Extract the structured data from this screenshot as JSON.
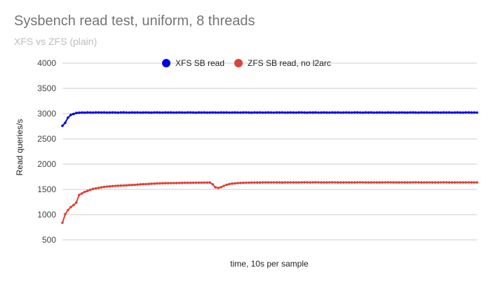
{
  "title": "Sysbench read test, uniform, 8 threads",
  "subtitle": "XFS vs ZFS (plain)",
  "chart_data": {
    "type": "line",
    "title": "Sysbench read test, uniform, 8 threads",
    "subtitle": "XFS vs ZFS (plain)",
    "xlabel": "time, 10s per sample",
    "ylabel": "Read queries/s",
    "ylim": [
      500,
      4000
    ],
    "yticks": [
      "4000",
      "3500",
      "3000",
      "2500",
      "2000",
      "1500",
      "1000",
      "500"
    ],
    "grid": true,
    "legend_position": "top",
    "x": [
      1,
      2,
      3,
      4,
      5,
      6,
      7,
      8,
      9,
      10,
      11,
      12,
      13,
      14,
      15,
      16,
      17,
      18,
      19,
      20,
      21,
      22,
      23,
      24,
      25,
      26,
      27,
      28,
      29,
      30,
      31,
      32,
      33,
      34,
      35,
      36,
      37,
      38,
      39,
      40,
      41,
      42,
      43,
      44,
      45,
      46,
      47,
      48,
      49,
      50,
      51,
      52,
      53,
      54,
      55,
      56,
      57,
      58,
      59,
      60,
      61,
      62,
      63,
      64,
      65,
      66,
      67,
      68,
      69,
      70,
      71,
      72,
      73,
      74,
      75,
      76,
      77,
      78,
      79,
      80,
      81,
      82,
      83,
      84,
      85,
      86,
      87,
      88,
      89,
      90,
      91,
      92,
      93,
      94,
      95,
      96,
      97,
      98,
      99,
      100,
      101,
      102,
      103,
      104,
      105,
      106,
      107,
      108,
      109,
      110,
      111,
      112,
      113,
      114,
      115,
      116,
      117,
      118,
      119,
      120,
      121,
      122,
      123,
      124,
      125,
      126,
      127,
      128,
      129,
      130,
      131,
      132,
      133,
      134,
      135,
      136,
      137,
      138,
      139,
      140,
      141,
      142,
      143,
      144,
      145,
      146,
      147,
      148,
      149,
      150
    ],
    "series": [
      {
        "name": "XFS SB read",
        "color": "#0000e6",
        "values": [
          2760,
          2820,
          2920,
          2975,
          2995,
          3012,
          3018,
          3022,
          3020,
          3024,
          3022,
          3021,
          3023,
          3024,
          3022,
          3023,
          3021,
          3022,
          3024,
          3022,
          3020,
          3023,
          3025,
          3022,
          3021,
          3023,
          3022,
          3024,
          3021,
          3022,
          3023,
          3022,
          3020,
          3023,
          3024,
          3022,
          3021,
          3023,
          3022,
          3024,
          3021,
          3022,
          3023,
          3022,
          3021,
          3023,
          3024,
          3022,
          3020,
          3023,
          3022,
          3024,
          3021,
          3022,
          3023,
          3022,
          3021,
          3023,
          3022,
          3024,
          3021,
          3022,
          3023,
          3022,
          3021,
          3023,
          3024,
          3022,
          3020,
          3023,
          3022,
          3024,
          3021,
          3022,
          3023,
          3022,
          3021,
          3023,
          3022,
          3024,
          3021,
          3022,
          3023,
          3022,
          3021,
          3023,
          3024,
          3022,
          3020,
          3023,
          3022,
          3024,
          3021,
          3022,
          3023,
          3022,
          3021,
          3023,
          3022,
          3024,
          3021,
          3022,
          3023,
          3022,
          3021,
          3023,
          3024,
          3022,
          3020,
          3023,
          3022,
          3024,
          3021,
          3022,
          3023,
          3022,
          3021,
          3023,
          3022,
          3024,
          3021,
          3022,
          3023,
          3022,
          3021,
          3023,
          3024,
          3022,
          3020,
          3023,
          3022,
          3024,
          3021,
          3022,
          3023,
          3022,
          3021,
          3023,
          3022,
          3024,
          3021,
          3022,
          3023,
          3022,
          3021,
          3023,
          3024,
          3022,
          3022,
          3021
        ]
      },
      {
        "name": "ZFS SB read, no l2arc",
        "color": "#db4437",
        "values": [
          840,
          1010,
          1090,
          1150,
          1190,
          1240,
          1390,
          1420,
          1450,
          1470,
          1490,
          1510,
          1520,
          1530,
          1540,
          1550,
          1555,
          1560,
          1565,
          1570,
          1572,
          1575,
          1578,
          1580,
          1585,
          1588,
          1590,
          1595,
          1600,
          1603,
          1606,
          1609,
          1612,
          1615,
          1618,
          1620,
          1622,
          1623,
          1624,
          1625,
          1626,
          1627,
          1628,
          1629,
          1630,
          1630,
          1631,
          1632,
          1633,
          1634,
          1634,
          1635,
          1635,
          1636,
          1600,
          1540,
          1530,
          1545,
          1570,
          1590,
          1605,
          1615,
          1620,
          1625,
          1628,
          1630,
          1632,
          1634,
          1635,
          1635,
          1636,
          1636,
          1637,
          1637,
          1638,
          1638,
          1639,
          1638,
          1637,
          1636,
          1637,
          1638,
          1639,
          1638,
          1637,
          1638,
          1639,
          1640,
          1639,
          1638,
          1639,
          1640,
          1639,
          1638,
          1637,
          1638,
          1639,
          1640,
          1639,
          1638,
          1637,
          1638,
          1639,
          1638,
          1637,
          1638,
          1639,
          1640,
          1639,
          1638,
          1637,
          1638,
          1639,
          1638,
          1637,
          1638,
          1639,
          1640,
          1639,
          1638,
          1637,
          1638,
          1639,
          1638,
          1637,
          1638,
          1639,
          1640,
          1639,
          1638,
          1637,
          1638,
          1639,
          1638,
          1637,
          1638,
          1639,
          1640,
          1639,
          1638,
          1637,
          1638,
          1639,
          1638,
          1637,
          1638,
          1639,
          1638,
          1638,
          1637
        ]
      }
    ]
  }
}
